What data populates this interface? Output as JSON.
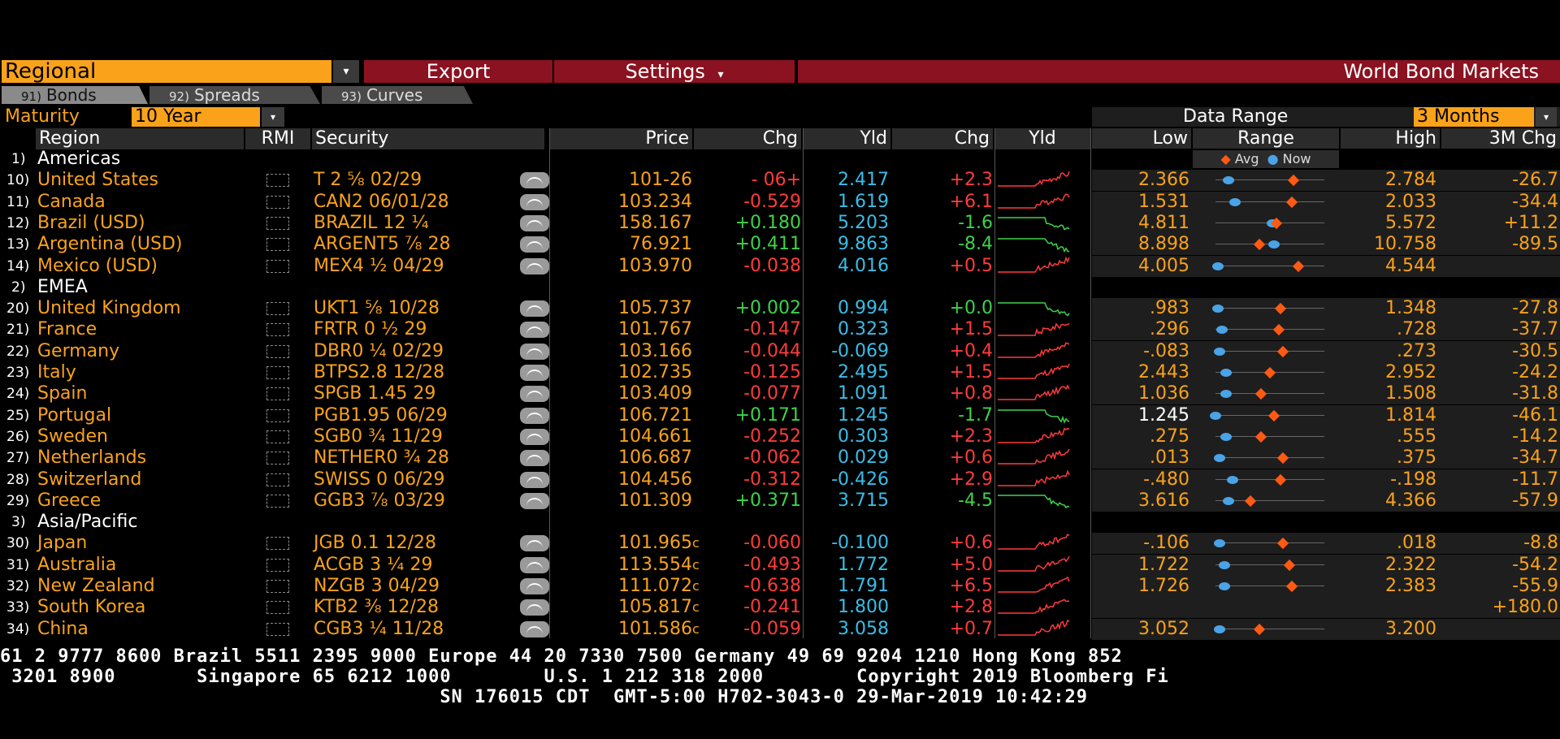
{
  "menu": {
    "regional": "Regional",
    "export": "Export",
    "settings": "Settings",
    "settings_arrow": "▾",
    "dd_arrow": "▾",
    "title": "World Bond Markets"
  },
  "tabs": [
    {
      "num": "91)",
      "label": "Bonds"
    },
    {
      "num": "92)",
      "label": "Spreads"
    },
    {
      "num": "93)",
      "label": "Curves"
    }
  ],
  "maturity": {
    "label": "Maturity",
    "value": "10 Year",
    "data_range_label": "Data Range",
    "data_range_value": "3 Months"
  },
  "headers": {
    "region": "Region",
    "rmi": "RMI",
    "security": "Security",
    "price": "Price",
    "chg": "Chg",
    "yld": "Yld",
    "chg2": "Chg",
    "yld2": "Yld",
    "low": "Low",
    "range": "Range",
    "high": "High",
    "chg3m": "3M Chg"
  },
  "legend": {
    "avg": "Avg",
    "now": "Now"
  },
  "groups": [
    {
      "idx": "1)",
      "name": "Americas"
    },
    {
      "idx": "2)",
      "name": "EMEA"
    },
    {
      "idx": "3)",
      "name": "Asia/Pacific"
    }
  ],
  "rows": [
    {
      "idx": "10)",
      "region": "United States",
      "security": "T 2 ⅝ 02/29",
      "price": "101-26",
      "chg": "- 06+",
      "yld": "2.417",
      "ychg": "+2.3",
      "low": "2.366",
      "high": "2.784",
      "c3m": "-26.7",
      "now": 0.12,
      "avg": 0.72,
      "chgc": "red",
      "ychgc": "red",
      "lowc": "orange"
    },
    {
      "idx": "11)",
      "region": "Canada",
      "security": "CAN2 06/01/28",
      "price": "103.234",
      "chg": "-0.529",
      "yld": "1.619",
      "ychg": "+6.1",
      "low": "1.531",
      "high": "2.033",
      "c3m": "-34.4",
      "now": 0.18,
      "avg": 0.7,
      "chgc": "red",
      "ychgc": "red",
      "lowc": "orange"
    },
    {
      "idx": "12)",
      "region": "Brazil (USD)",
      "security": "BRAZIL 12 ¼",
      "price": "158.167",
      "chg": "+0.180",
      "yld": "5.203",
      "ychg": "-1.6",
      "low": "4.811",
      "high": "5.572",
      "c3m": "+11.2",
      "now": 0.52,
      "avg": 0.56,
      "chgc": "green",
      "ychgc": "green",
      "lowc": "orange"
    },
    {
      "idx": "13)",
      "region": "Argentina (USD)",
      "security": "ARGENT5 ⅞ 28",
      "price": "76.921",
      "chg": "+0.411",
      "yld": "9.863",
      "ychg": "-8.4",
      "low": "8.898",
      "high": "10.758",
      "c3m": "-89.5",
      "now": 0.54,
      "avg": 0.4,
      "chgc": "green",
      "ychgc": "green",
      "lowc": "orange"
    },
    {
      "idx": "14)",
      "region": "Mexico (USD)",
      "security": "MEX4 ½ 04/29",
      "price": "103.970",
      "chg": "-0.038",
      "yld": "4.016",
      "ychg": "+0.5",
      "low": "4.005",
      "high": "4.544",
      "c3m": "",
      "now": 0.02,
      "avg": 0.76,
      "chgc": "red",
      "ychgc": "red",
      "lowc": "orange"
    },
    {
      "idx": "20)",
      "region": "United Kingdom",
      "security": "UKT1 ⅝ 10/28",
      "price": "105.737",
      "chg": "+0.002",
      "yld": "0.994",
      "ychg": "+0.0",
      "low": ".983",
      "high": "1.348",
      "c3m": "-27.8",
      "now": 0.02,
      "avg": 0.6,
      "chgc": "green",
      "ychgc": "green",
      "lowc": "orange"
    },
    {
      "idx": "21)",
      "region": "France",
      "security": "FRTR 0 ½ 29",
      "price": "101.767",
      "chg": "-0.147",
      "yld": "0.323",
      "ychg": "+1.5",
      "low": ".296",
      "high": ".728",
      "c3m": "-37.7",
      "now": 0.06,
      "avg": 0.58,
      "chgc": "red",
      "ychgc": "red",
      "lowc": "orange"
    },
    {
      "idx": "22)",
      "region": "Germany",
      "security": "DBR0 ¼ 02/29",
      "price": "103.166",
      "chg": "-0.044",
      "yld": "-0.069",
      "ychg": "+0.4",
      "low": "-.083",
      "high": ".273",
      "c3m": "-30.5",
      "now": 0.04,
      "avg": 0.62,
      "chgc": "red",
      "ychgc": "red",
      "lowc": "orange"
    },
    {
      "idx": "23)",
      "region": "Italy",
      "security": "BTPS2.8 12/28",
      "price": "102.735",
      "chg": "-0.125",
      "yld": "2.495",
      "ychg": "+1.5",
      "low": "2.443",
      "high": "2.952",
      "c3m": "-24.2",
      "now": 0.1,
      "avg": 0.5,
      "chgc": "red",
      "ychgc": "red",
      "lowc": "orange"
    },
    {
      "idx": "24)",
      "region": "Spain",
      "security": "SPGB 1.45 29",
      "price": "103.409",
      "chg": "-0.077",
      "yld": "1.091",
      "ychg": "+0.8",
      "low": "1.036",
      "high": "1.508",
      "c3m": "-31.8",
      "now": 0.1,
      "avg": 0.42,
      "chgc": "red",
      "ychgc": "red",
      "lowc": "orange"
    },
    {
      "idx": "25)",
      "region": "Portugal",
      "security": "PGB1.95 06/29",
      "price": "106.721",
      "chg": "+0.171",
      "yld": "1.245",
      "ychg": "-1.7",
      "low": "1.245",
      "high": "1.814",
      "c3m": "-46.1",
      "now": 0.0,
      "avg": 0.54,
      "chgc": "green",
      "ychgc": "green",
      "lowc": "white"
    },
    {
      "idx": "26)",
      "region": "Sweden",
      "security": "SGB0 ¾ 11/29",
      "price": "104.661",
      "chg": "-0.252",
      "yld": "0.303",
      "ychg": "+2.3",
      "low": ".275",
      "high": ".555",
      "c3m": "-14.2",
      "now": 0.1,
      "avg": 0.42,
      "chgc": "red",
      "ychgc": "red",
      "lowc": "orange"
    },
    {
      "idx": "27)",
      "region": "Netherlands",
      "security": "NETHER0 ¾ 28",
      "price": "106.687",
      "chg": "-0.062",
      "yld": "0.029",
      "ychg": "+0.6",
      "low": ".013",
      "high": ".375",
      "c3m": "-34.7",
      "now": 0.04,
      "avg": 0.62,
      "chgc": "red",
      "ychgc": "red",
      "lowc": "orange"
    },
    {
      "idx": "28)",
      "region": "Switzerland",
      "security": "SWISS 0 06/29",
      "price": "104.456",
      "chg": "-0.312",
      "yld": "-0.426",
      "ychg": "+2.9",
      "low": "-.480",
      "high": "-.198",
      "c3m": "-11.7",
      "now": 0.16,
      "avg": 0.6,
      "chgc": "red",
      "ychgc": "red",
      "lowc": "orange"
    },
    {
      "idx": "29)",
      "region": "Greece",
      "security": "GGB3 ⅞ 03/29",
      "price": "101.309",
      "chg": "+0.371",
      "yld": "3.715",
      "ychg": "-4.5",
      "low": "3.616",
      "high": "4.366",
      "c3m": "-57.9",
      "now": 0.12,
      "avg": 0.32,
      "chgc": "green",
      "ychgc": "green",
      "lowc": "orange"
    },
    {
      "idx": "30)",
      "region": "Japan",
      "security": "JGB 0.1 12/28",
      "price": "101.965",
      "pricesuf": "c",
      "chg": "-0.060",
      "yld": "-0.100",
      "ychg": "+0.6",
      "low": "-.106",
      "high": ".018",
      "c3m": "-8.8",
      "now": 0.04,
      "avg": 0.62,
      "chgc": "red",
      "ychgc": "red",
      "lowc": "orange"
    },
    {
      "idx": "31)",
      "region": "Australia",
      "security": "ACGB 3 ¼ 29",
      "price": "113.554",
      "pricesuf": "c",
      "chg": "-0.493",
      "yld": "1.772",
      "ychg": "+5.0",
      "low": "1.722",
      "high": "2.322",
      "c3m": "-54.2",
      "now": 0.08,
      "avg": 0.68,
      "chgc": "red",
      "ychgc": "red",
      "lowc": "orange"
    },
    {
      "idx": "32)",
      "region": "New Zealand",
      "security": "NZGB 3 04/29",
      "price": "111.072",
      "pricesuf": "c",
      "chg": "-0.638",
      "yld": "1.791",
      "ychg": "+6.5",
      "low": "1.726",
      "high": "2.383",
      "c3m": "-55.9",
      "now": 0.08,
      "avg": 0.7,
      "chgc": "red",
      "ychgc": "red",
      "lowc": "orange"
    },
    {
      "idx": "33)",
      "region": "South Korea",
      "security": "KTB2 ⅜ 12/28",
      "price": "105.817",
      "pricesuf": "c",
      "chg": "-0.241",
      "yld": "1.800",
      "ychg": "+2.8",
      "low": "",
      "high": "",
      "c3m": "+180.0",
      "now": null,
      "avg": null,
      "chgc": "red",
      "ychgc": "red",
      "lowc": "orange"
    },
    {
      "idx": "34)",
      "region": "China",
      "security": "CGB3 ¼ 11/28",
      "price": "101.586",
      "pricesuf": "c",
      "chg": "-0.059",
      "yld": "3.058",
      "ychg": "+0.7",
      "low": "3.052",
      "high": "3.200",
      "c3m": "",
      "now": 0.04,
      "avg": 0.4,
      "chgc": "red",
      "ychgc": "red",
      "lowc": "orange"
    }
  ],
  "ticker": {
    "line1": "61 2 9777 8600 Brazil 5511 2395 9000 Europe 44 20 7330 7500 Germany 49 69 9204 1210 Hong Kong 852",
    "line2": " 3201 8900       Singapore 65 6212 1000        U.S. 1 212 318 2000        Copyright 2019 Bloomberg Fi",
    "line3": "                                      SN 176015 CDT  GMT-5:00 H702-3043-0 29-Mar-2019 10:42:29"
  },
  "colors": {
    "orange": "#f9a21a",
    "red": "#8b1221",
    "green": "#3fd24a",
    "cyan": "#3bbde8",
    "neg": "#ff3b3b"
  }
}
